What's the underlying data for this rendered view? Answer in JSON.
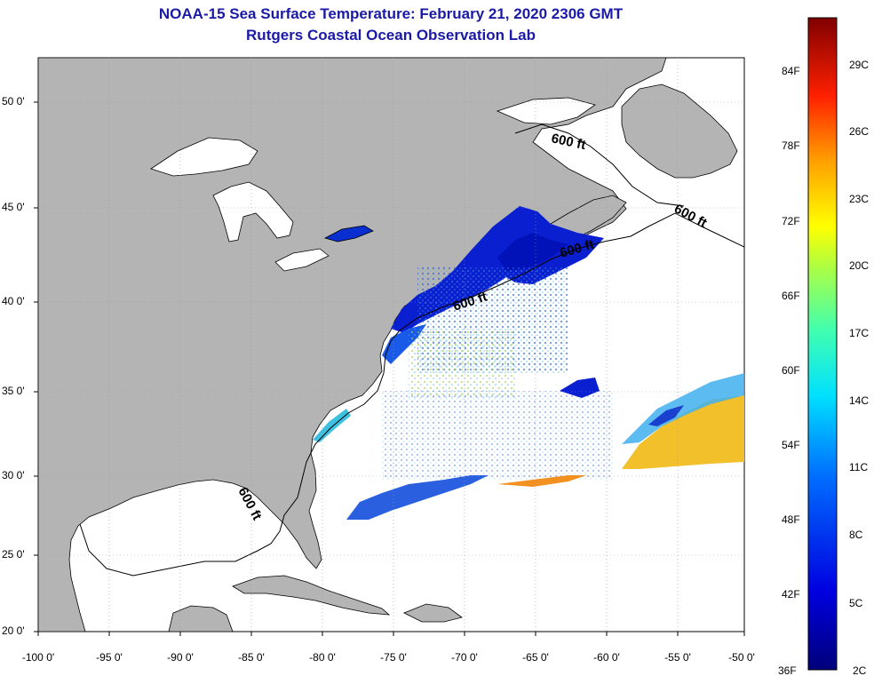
{
  "title_line1": "NOAA-15 Sea Surface Temperature:  February 21, 2020 2306 GMT",
  "title_line2": "Rutgers Coastal Ocean Observation Lab",
  "y_axis_labels": [
    "50 0'",
    "45 0'",
    "40 0'",
    "35 0'",
    "30 0'",
    "25 0'",
    "20 0'"
  ],
  "x_axis_labels": [
    "-100 0'",
    "-95 0'",
    "-90 0'",
    "-85 0'",
    "-80 0'",
    "-75 0'",
    "-70 0'",
    "-65 0'",
    "-60 0'",
    "-55 0'",
    "-50 0'"
  ],
  "contour_label": "600 ft",
  "colorbar": {
    "fahrenheit_labels": [
      "84F",
      "78F",
      "72F",
      "66F",
      "60F",
      "54F",
      "48F",
      "42F",
      "36F"
    ],
    "celsius_labels": [
      "29C",
      "26C",
      "23C",
      "20C",
      "17C",
      "14C",
      "11C",
      "8C",
      "5C",
      "2C"
    ]
  },
  "colors": {
    "land": "#b4b4b4",
    "ocean_nodata": "#ffffff",
    "title": "#1a1aa6",
    "cold": "#0a1fd0",
    "warm": "#f2c02a"
  }
}
